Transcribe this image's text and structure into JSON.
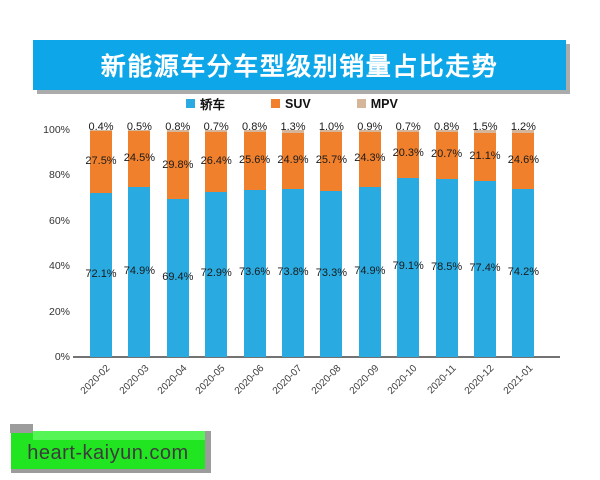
{
  "header": {
    "title": "新能源车分车型级别销量占比走势"
  },
  "watermark": {
    "text": "heart-kaiyun.com"
  },
  "colors": {
    "banner_blue": "#0ca6e9",
    "banner_shadow": "#ababab",
    "sedan_blue": "#29abe2",
    "suv_orange": "#f0802c",
    "mpv_tan": "#d5b69a",
    "axis_gray": "#737373",
    "watermark_green": "#22e522",
    "watermark_light_green": "#56f556",
    "watermark_gray": "#9c9c9c"
  },
  "chart_data": {
    "type": "bar",
    "stacked": true,
    "title": "新能源车分车型级别销量占比走势",
    "categories": [
      "2020-02",
      "2020-03",
      "2020-04",
      "2020-05",
      "2020-06",
      "2020-07",
      "2020-08",
      "2020-09",
      "2020-10",
      "2020-11",
      "2020-12",
      "2021-01"
    ],
    "series": [
      {
        "name": "轿车",
        "key": "sedan",
        "color": "#29abe2",
        "values": [
          72.1,
          74.9,
          69.4,
          72.9,
          73.6,
          73.8,
          73.3,
          74.9,
          79.1,
          78.5,
          77.4,
          74.2
        ]
      },
      {
        "name": "SUV",
        "key": "suv",
        "color": "#f0802c",
        "values": [
          27.5,
          24.5,
          29.8,
          26.4,
          25.6,
          24.9,
          25.7,
          24.3,
          20.3,
          20.7,
          21.1,
          24.6
        ]
      },
      {
        "name": "MPV",
        "key": "mpv",
        "color": "#d5b69a",
        "values": [
          0.4,
          0.5,
          0.8,
          0.7,
          0.8,
          1.3,
          1.0,
          0.9,
          0.7,
          0.8,
          1.5,
          1.2
        ]
      }
    ],
    "unit": "%",
    "yticks": [
      "0%",
      "20%",
      "40%",
      "60%",
      "80%",
      "100%"
    ],
    "ylim": [
      0,
      100
    ],
    "grid": false,
    "legend_position": "top",
    "value_labels": "shown on every segment; MPV labels above bars"
  }
}
